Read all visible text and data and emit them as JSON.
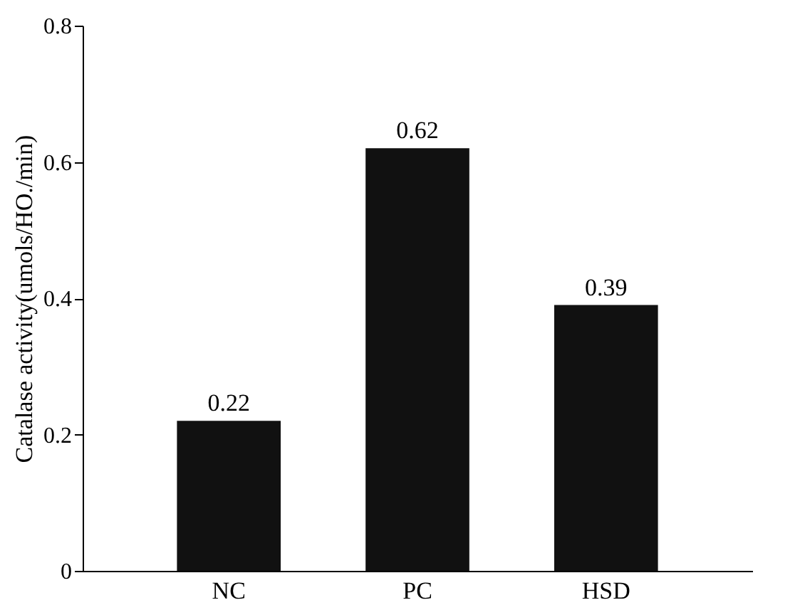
{
  "chart_data": {
    "type": "bar",
    "ylabel": "Catalase activity(umols/HO./min)",
    "categories": [
      "NC",
      "PC",
      "HSD"
    ],
    "values": [
      0.22,
      0.62,
      0.39
    ],
    "color": "#111111",
    "ylim": [
      0,
      0.8
    ],
    "yticks": [
      0,
      0.2,
      0.4,
      0.6,
      0.8
    ],
    "data_labels": true,
    "grid": false
  }
}
